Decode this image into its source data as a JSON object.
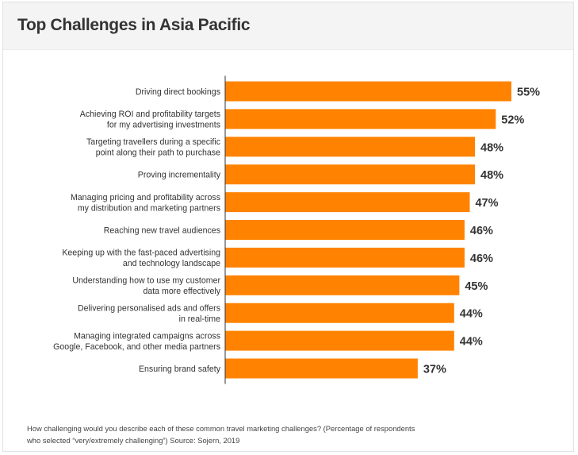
{
  "title": "Top Challenges in Asia Pacific",
  "footnote": {
    "line1": "How challenging would you describe each of these common travel marketing challenges? (Percentage of respondents",
    "line2": "who selected “very/extremely challenging”) Source: Sojern, 2019"
  },
  "colors": {
    "bar": "#ff8300",
    "axis": "#333333",
    "label": "#333333",
    "value": "#333333"
  },
  "chart_data": {
    "type": "bar",
    "orientation": "horizontal",
    "title": "Top Challenges in Asia Pacific",
    "xlabel": "",
    "ylabel": "",
    "xlim": [
      0,
      55
    ],
    "grid": false,
    "legend": "none",
    "value_suffix": "%",
    "categories": [
      [
        "Driving direct bookings"
      ],
      [
        "Achieving ROI and profitability targets",
        "for my advertising investments"
      ],
      [
        "Targeting travellers during a specific",
        "point along their path to purchase"
      ],
      [
        "Proving incrementality"
      ],
      [
        "Managing pricing and profitability across",
        "my distribution and marketing partners"
      ],
      [
        "Reaching new travel audiences"
      ],
      [
        "Keeping up with the fast-paced advertising",
        "and technology landscape"
      ],
      [
        "Understanding how to use my customer",
        "data more effectively"
      ],
      [
        "Delivering personalised ads and offers",
        "in real-time"
      ],
      [
        "Managing integrated campaigns across",
        "Google, Facebook, and other media partners"
      ],
      [
        "Ensuring brand safety"
      ]
    ],
    "values": [
      55,
      52,
      48,
      48,
      47,
      46,
      46,
      45,
      44,
      44,
      37
    ]
  }
}
